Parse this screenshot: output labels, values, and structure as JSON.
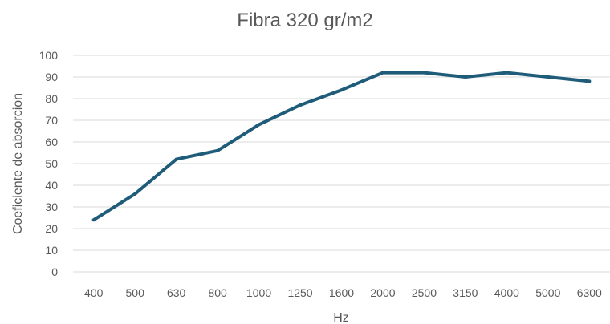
{
  "chart_data": {
    "type": "line",
    "title": "Fibra 320 gr/m2",
    "xlabel": "Hz",
    "ylabel": "Coeficiente de absorcion",
    "categories": [
      "400",
      "500",
      "630",
      "800",
      "1000",
      "1250",
      "1600",
      "2000",
      "2500",
      "3150",
      "4000",
      "5000",
      "6300"
    ],
    "series": [
      {
        "values": [
          24,
          36,
          52,
          56,
          68,
          77,
          84,
          92,
          92,
          90,
          92,
          90,
          88
        ]
      }
    ],
    "ylim": [
      0,
      100
    ],
    "yticks": [
      0,
      10,
      20,
      30,
      40,
      50,
      60,
      70,
      80,
      90,
      100
    ],
    "grid": true,
    "legend": "none",
    "colors": {
      "series": "#1f5c7a",
      "grid": "#d9d9d9",
      "text": "#595959"
    }
  }
}
